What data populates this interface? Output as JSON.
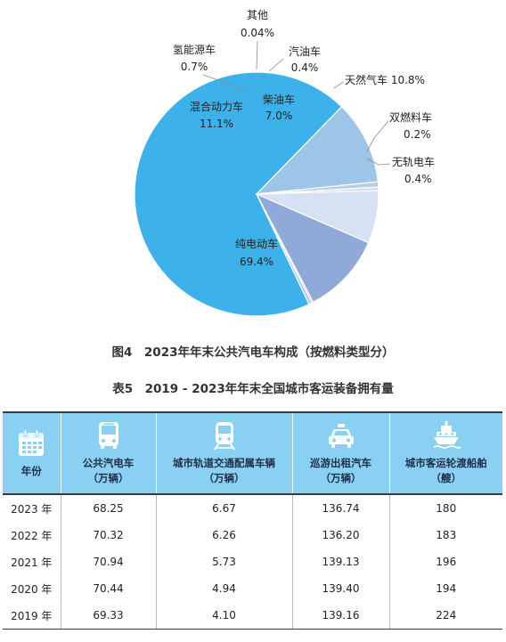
{
  "chart_data": {
    "type": "pie",
    "title": "图4　2023年年末公共汽电车构成（按燃料类型分）",
    "slices": [
      {
        "name": "纯电动车",
        "value": 69.4,
        "value_label": "69.4%",
        "color": "#3cb1ea"
      },
      {
        "name": "混合动力车",
        "value": 11.1,
        "value_label": "11.1%",
        "color": "#9dc5e7"
      },
      {
        "name": "氢能源车",
        "value": 0.7,
        "value_label": "0.7%",
        "color": "#b7cde6"
      },
      {
        "name": "其他",
        "value": 0.04,
        "value_label": "0.04%",
        "color": "#b3b3b3"
      },
      {
        "name": "汽油车",
        "value": 0.4,
        "value_label": "0.4%",
        "color": "#c9d6ec"
      },
      {
        "name": "柴油车",
        "value": 7.0,
        "value_label": "7.0%",
        "color": "#d6e2f4"
      },
      {
        "name": "天然气车",
        "value": 10.8,
        "value_label": "10.8%",
        "color": "#8fa9d8"
      },
      {
        "name": "双燃料车",
        "value": 0.2,
        "value_label": "0.2%",
        "color": "#6b8fcb"
      },
      {
        "name": "无轨电车",
        "value": 0.4,
        "value_label": "0.4%",
        "color": "#b0c6e6"
      }
    ]
  },
  "table": {
    "caption": "表5　2019 - 2023年年末全国城市客运装备拥有量",
    "columns": [
      {
        "icon": "calendar-icon",
        "line1": "年份",
        "line2": ""
      },
      {
        "icon": "bus-icon",
        "line1": "公共汽电车",
        "line2": "（万辆）"
      },
      {
        "icon": "metro-train-icon",
        "line1": "城市轨道交通配属车辆",
        "line2": "（万辆）"
      },
      {
        "icon": "taxi-icon",
        "line1": "巡游出租汽车",
        "line2": "（万辆）"
      },
      {
        "icon": "ferry-ship-icon",
        "line1": "城市客运轮渡船舶",
        "line2": "（艘）"
      }
    ],
    "rows": [
      [
        "2023 年",
        "68.25",
        "6.67",
        "136.74",
        "180"
      ],
      [
        "2022 年",
        "70.32",
        "6.26",
        "136.20",
        "183"
      ],
      [
        "2021 年",
        "70.94",
        "5.73",
        "139.13",
        "196"
      ],
      [
        "2020 年",
        "70.44",
        "4.94",
        "139.40",
        "194"
      ],
      [
        "2019 年",
        "69.33",
        "4.10",
        "139.16",
        "224"
      ]
    ],
    "header_color": "#89d0f3"
  }
}
